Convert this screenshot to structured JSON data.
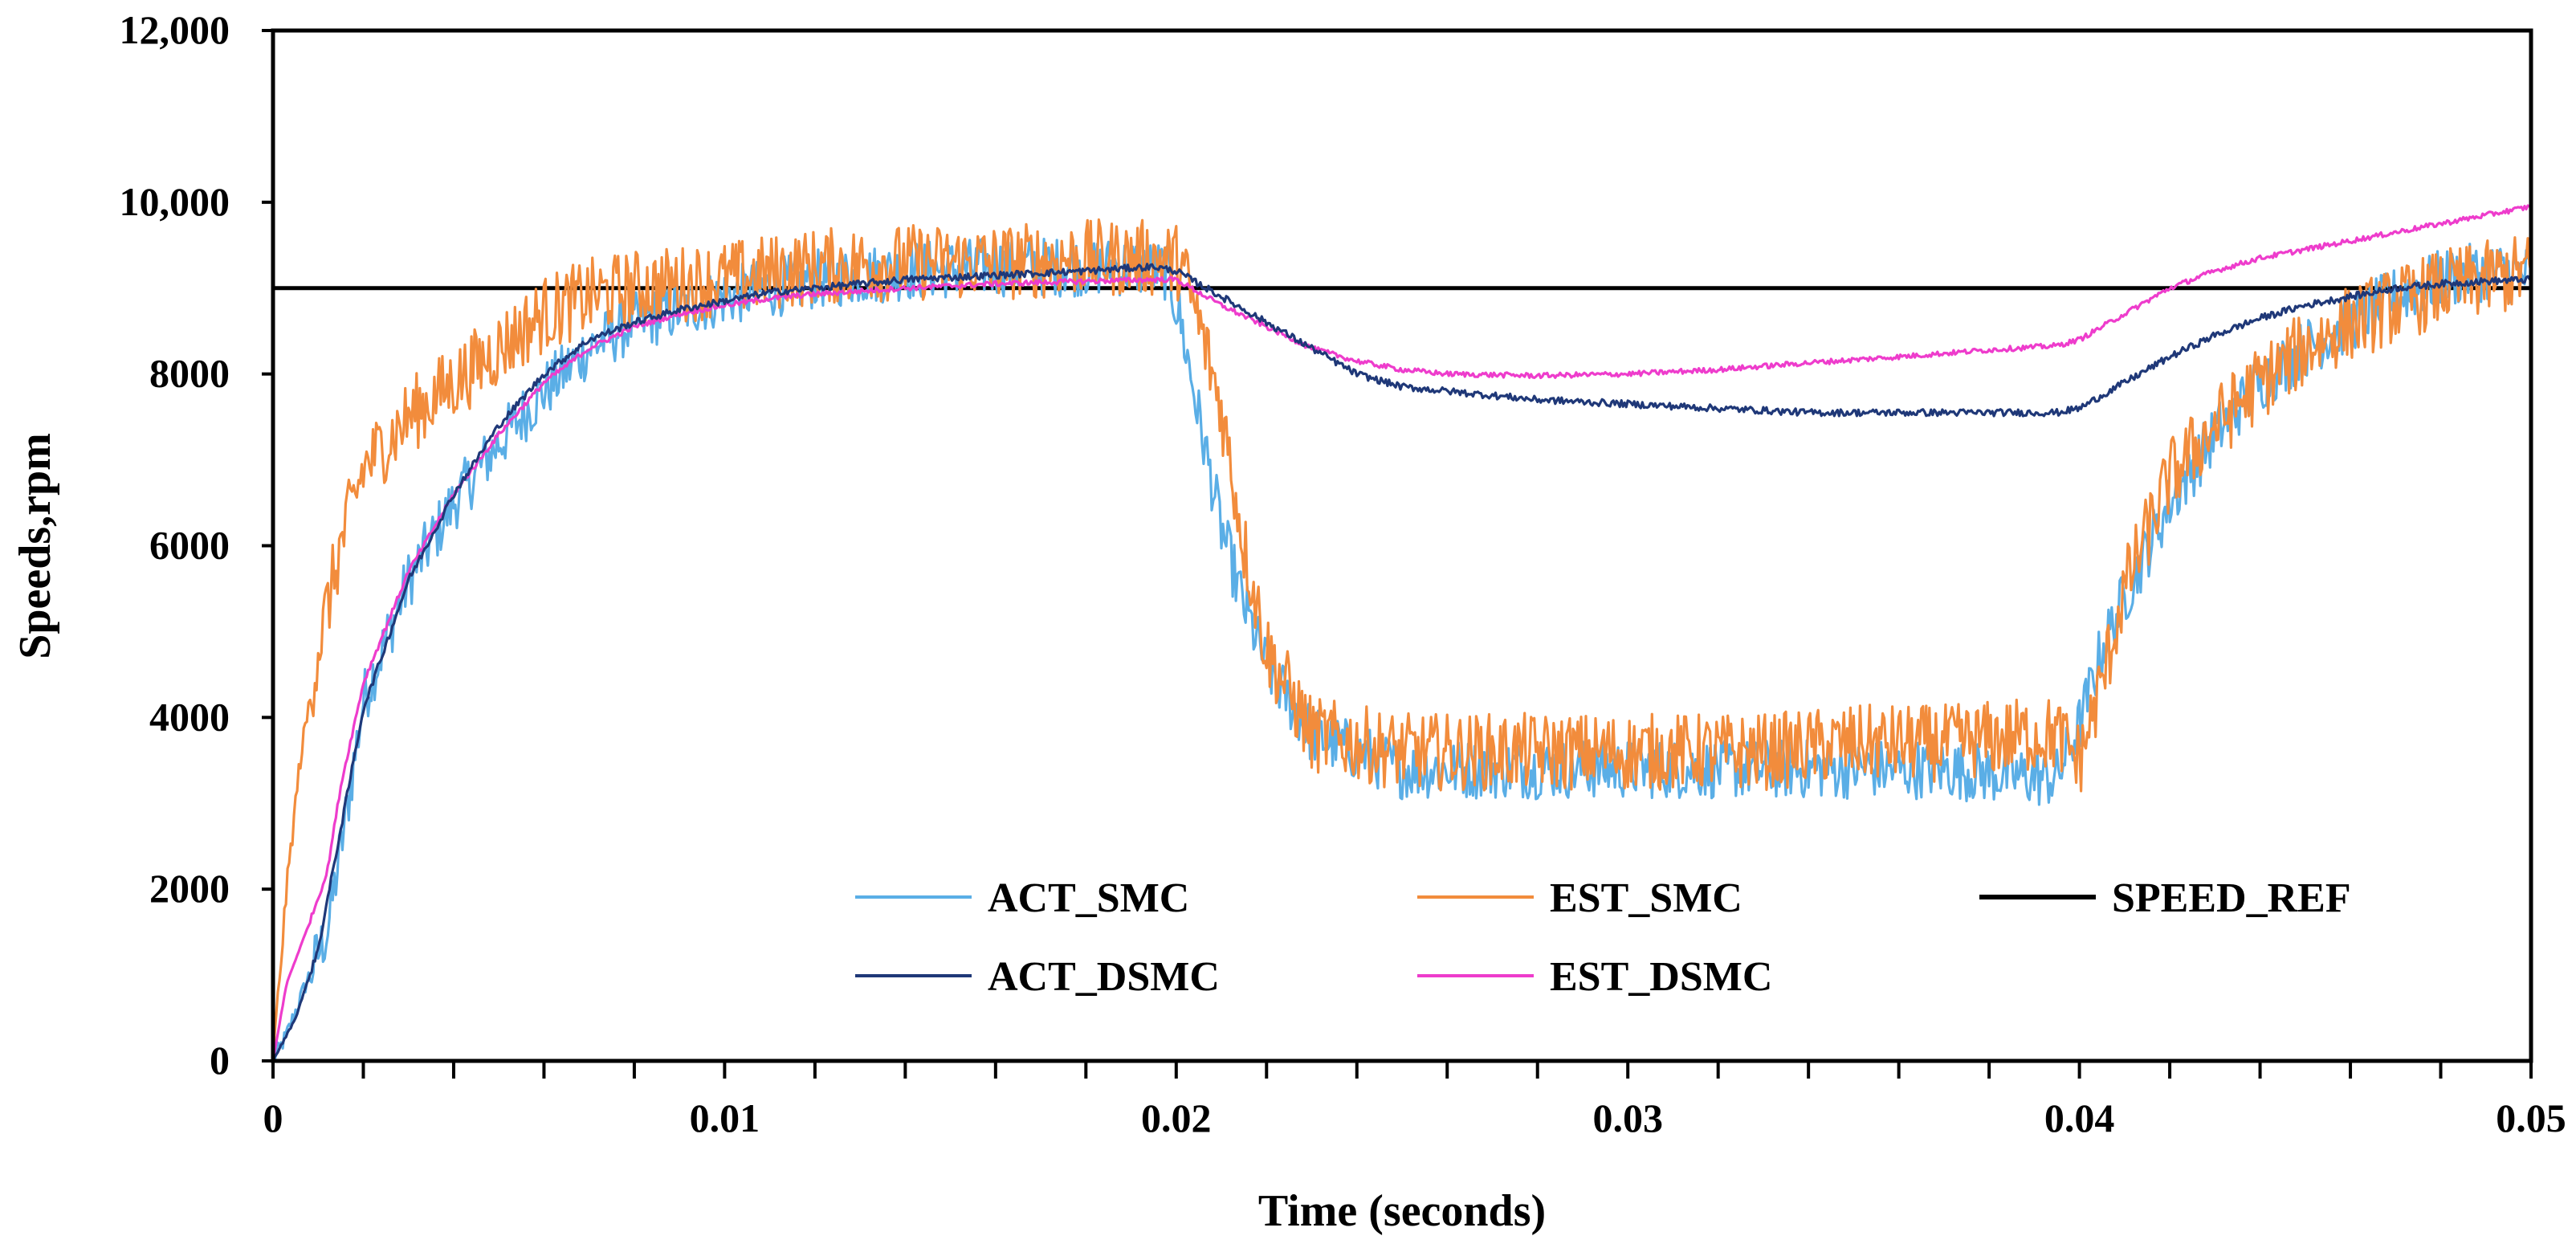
{
  "chart_data": {
    "type": "line",
    "title": "",
    "xlabel": "Time (seconds)",
    "ylabel": "Speeds,rpm",
    "xlim": [
      0,
      0.05
    ],
    "ylim": [
      0,
      12000
    ],
    "x_ticks": [
      0,
      0.01,
      0.02,
      0.03,
      0.04,
      0.05
    ],
    "x_tick_labels": [
      "0",
      "0.01",
      "0.02",
      "0.03",
      "0.04",
      "0.05"
    ],
    "x_minor_step": 0.002,
    "y_ticks": [
      0,
      2000,
      4000,
      6000,
      8000,
      10000,
      12000
    ],
    "y_tick_labels": [
      "0",
      "2000",
      "4000",
      "6000",
      "8000",
      "10,000",
      "12,000"
    ],
    "grid": false,
    "legend_position": "bottom-center",
    "series": [
      {
        "name": "ACT_SMC",
        "color": "#5aaee6",
        "noise": 350,
        "x": [
          0,
          0.0003,
          0.0008,
          0.0012,
          0.0016,
          0.002,
          0.003,
          0.004,
          0.005,
          0.006,
          0.007,
          0.008,
          0.009,
          0.01,
          0.012,
          0.014,
          0.016,
          0.018,
          0.019,
          0.0198,
          0.0201,
          0.0205,
          0.021,
          0.0215,
          0.022,
          0.023,
          0.025,
          0.028,
          0.03,
          0.033,
          0.035,
          0.037,
          0.039,
          0.0395,
          0.04,
          0.0405,
          0.041,
          0.042,
          0.043,
          0.044,
          0.045,
          0.046,
          0.047,
          0.048,
          0.049,
          0.05
        ],
        "y": [
          0,
          300,
          1000,
          1500,
          2800,
          4200,
          5600,
          6500,
          7200,
          7800,
          8300,
          8600,
          8750,
          8900,
          9100,
          9200,
          9250,
          9250,
          9250,
          9200,
          8600,
          7500,
          6200,
          5300,
          4600,
          3800,
          3400,
          3400,
          3400,
          3400,
          3400,
          3400,
          3300,
          3300,
          3900,
          4800,
          5400,
          6500,
          7300,
          7900,
          8300,
          8600,
          8900,
          9100,
          9200,
          9150
        ]
      },
      {
        "name": "EST_SMC",
        "color": "#f28c3c",
        "noise": 450,
        "x": [
          0,
          0.0003,
          0.0006,
          0.001,
          0.0015,
          0.002,
          0.003,
          0.004,
          0.005,
          0.006,
          0.007,
          0.008,
          0.009,
          0.01,
          0.012,
          0.014,
          0.016,
          0.018,
          0.0195,
          0.0201,
          0.0205,
          0.021,
          0.0215,
          0.022,
          0.023,
          0.025,
          0.028,
          0.03,
          0.033,
          0.035,
          0.037,
          0.039,
          0.0395,
          0.04,
          0.0405,
          0.041,
          0.042,
          0.043,
          0.044,
          0.045,
          0.046,
          0.047,
          0.048,
          0.049,
          0.05
        ],
        "y": [
          0,
          2000,
          3500,
          4800,
          6000,
          6900,
          7500,
          7900,
          8300,
          8700,
          8900,
          9000,
          9050,
          9100,
          9250,
          9300,
          9300,
          9350,
          9350,
          9300,
          8600,
          7600,
          6000,
          4800,
          3800,
          3600,
          3600,
          3600,
          3600,
          3700,
          3700,
          3800,
          3800,
          3500,
          4400,
          5500,
          6800,
          7400,
          7900,
          8300,
          8600,
          8800,
          9000,
          9100,
          9200
        ]
      },
      {
        "name": "SPEED_REF",
        "color": "#000000",
        "noise": 0,
        "x": [
          0,
          0.05
        ],
        "y": [
          9000,
          9000
        ]
      },
      {
        "name": "ACT_DSMC",
        "color": "#1f3878",
        "noise": 40,
        "x": [
          0,
          0.0005,
          0.001,
          0.0015,
          0.002,
          0.003,
          0.004,
          0.005,
          0.006,
          0.007,
          0.008,
          0.009,
          0.01,
          0.011,
          0.012,
          0.014,
          0.016,
          0.018,
          0.0195,
          0.02,
          0.021,
          0.022,
          0.023,
          0.024,
          0.025,
          0.026,
          0.027,
          0.028,
          0.03,
          0.032,
          0.034,
          0.036,
          0.038,
          0.0395,
          0.04,
          0.041,
          0.042,
          0.043,
          0.044,
          0.045,
          0.046,
          0.047,
          0.048,
          0.049,
          0.05
        ],
        "y": [
          0,
          500,
          1300,
          2700,
          4100,
          5600,
          6600,
          7400,
          8000,
          8400,
          8600,
          8750,
          8850,
          8950,
          9000,
          9100,
          9150,
          9200,
          9250,
          9200,
          8900,
          8600,
          8300,
          8000,
          7850,
          7800,
          7750,
          7700,
          7650,
          7600,
          7550,
          7550,
          7550,
          7550,
          7600,
          7900,
          8200,
          8450,
          8650,
          8800,
          8900,
          9000,
          9050,
          9080,
          9100
        ]
      },
      {
        "name": "EST_DSMC",
        "color": "#ee3ccc",
        "noise": 30,
        "x": [
          0,
          0.0003,
          0.0008,
          0.001,
          0.0012,
          0.0015,
          0.002,
          0.003,
          0.004,
          0.005,
          0.006,
          0.007,
          0.008,
          0.009,
          0.01,
          0.011,
          0.012,
          0.014,
          0.016,
          0.018,
          0.0195,
          0.02,
          0.021,
          0.022,
          0.023,
          0.024,
          0.025,
          0.026,
          0.027,
          0.028,
          0.03,
          0.032,
          0.034,
          0.036,
          0.038,
          0.0395,
          0.04,
          0.041,
          0.042,
          0.043,
          0.044,
          0.045,
          0.046,
          0.047,
          0.048,
          0.049,
          0.05
        ],
        "y": [
          0,
          900,
          1600,
          1900,
          2200,
          3200,
          4400,
          5700,
          6600,
          7300,
          7900,
          8300,
          8550,
          8700,
          8800,
          8880,
          8930,
          9000,
          9050,
          9080,
          9100,
          9100,
          8800,
          8550,
          8300,
          8150,
          8050,
          8000,
          7990,
          7980,
          8000,
          8050,
          8130,
          8200,
          8280,
          8330,
          8400,
          8700,
          9000,
          9200,
          9350,
          9450,
          9550,
          9650,
          9750,
          9850,
          9950
        ]
      }
    ],
    "legend": [
      {
        "label": "ACT_SMC",
        "color": "#5aaee6"
      },
      {
        "label": "EST_SMC",
        "color": "#f28c3c"
      },
      {
        "label": "SPEED_REF",
        "color": "#000000"
      },
      {
        "label": "ACT_DSMC",
        "color": "#1f3878"
      },
      {
        "label": "EST_DSMC",
        "color": "#ee3ccc"
      }
    ]
  }
}
